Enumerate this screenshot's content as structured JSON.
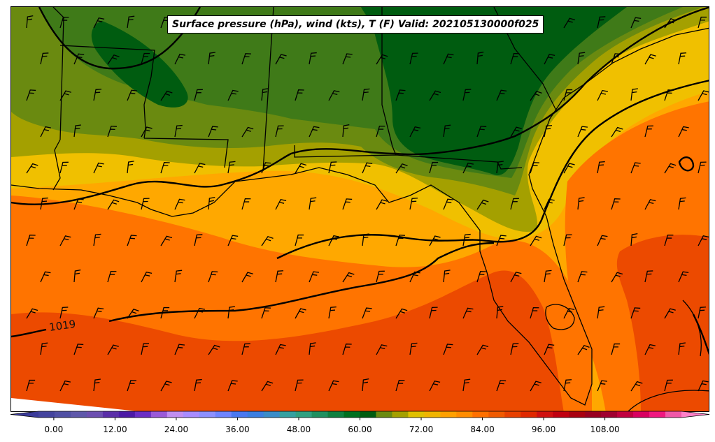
{
  "title": "Surface pressure (hPa), wind (kts), T (F) Valid: 202105130000f025",
  "contour_label": "1019",
  "colorbar": {
    "min": -6,
    "max": 126,
    "step": 3,
    "tick_values": [
      0,
      12,
      24,
      36,
      48,
      60,
      72,
      84,
      96,
      108
    ],
    "tick_labels": [
      "0.00",
      "12.00",
      "24.00",
      "36.00",
      "48.00",
      "60.00",
      "72.00",
      "84.00",
      "96.00",
      "108.00"
    ],
    "colors": [
      "#3b3b9a",
      "#44449e",
      "#5050a4",
      "#5e58aa",
      "#6c4fb0",
      "#5a2ea8",
      "#4c1aa6",
      "#6a2ec4",
      "#9a5ad8",
      "#c08ef0",
      "#a88cff",
      "#8c90ff",
      "#6e84ff",
      "#4a78f0",
      "#3b7ee0",
      "#3a8cc8",
      "#35a0a0",
      "#30a080",
      "#209060",
      "#108040",
      "#007020",
      "#005c10",
      "#6a8a10",
      "#a4a000",
      "#e0c000",
      "#f0b400",
      "#ffa000",
      "#ff8c00",
      "#ff7000",
      "#f05a00",
      "#e84000",
      "#e02800",
      "#d01010",
      "#c00010",
      "#a80010",
      "#980020",
      "#a00030",
      "#c00040",
      "#d80060",
      "#f01880",
      "#f058a8",
      "#ff80c8"
    ]
  },
  "map_colors": {
    "temp_60_63": "#005c10",
    "temp_63_66": "#3f7a18",
    "temp_66_69": "#6a8a10",
    "temp_69_72": "#a4a000",
    "temp_72_75": "#f0c000",
    "temp_75_78": "#ffa800",
    "temp_78_81": "#ff7400",
    "temp_81_84": "#ec4a00",
    "pressure_contour": "#000000",
    "state_border": "#000000"
  }
}
